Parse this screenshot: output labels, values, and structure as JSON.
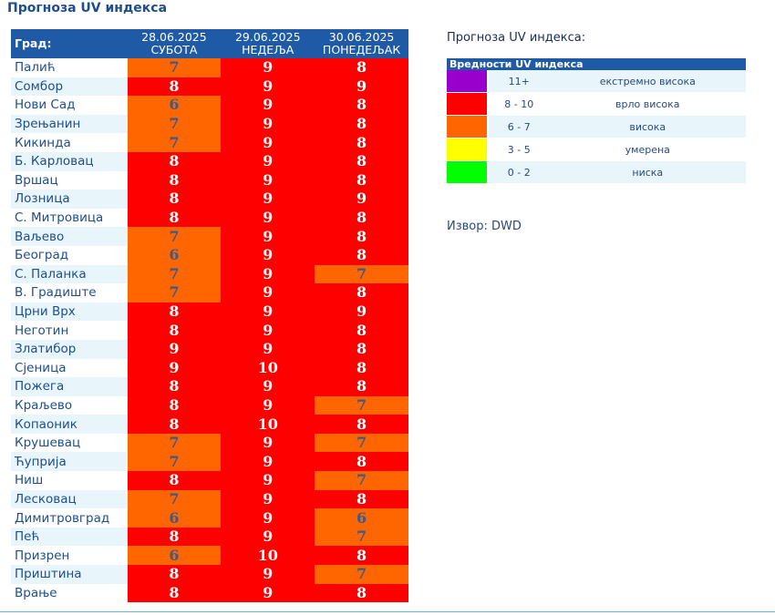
{
  "title": "Прогноза UV индекса",
  "table": {
    "city_header": "Град:",
    "days": [
      {
        "date": "28.06.2025",
        "weekday": "СУБОТА"
      },
      {
        "date": "29.06.2025",
        "weekday": "НЕДЕЉА"
      },
      {
        "date": "30.06.2025",
        "weekday": "ПОНЕДЕЉАК"
      }
    ],
    "rows": [
      {
        "city": "Палић",
        "values": [
          7,
          9,
          8
        ]
      },
      {
        "city": "Сомбор",
        "values": [
          8,
          9,
          9
        ]
      },
      {
        "city": "Нови Сад",
        "values": [
          6,
          9,
          8
        ]
      },
      {
        "city": "Зрењанин",
        "values": [
          7,
          9,
          8
        ]
      },
      {
        "city": "Кикинда",
        "values": [
          7,
          9,
          8
        ]
      },
      {
        "city": "Б. Карловац",
        "values": [
          8,
          9,
          8
        ]
      },
      {
        "city": "Вршац",
        "values": [
          8,
          9,
          8
        ]
      },
      {
        "city": "Лозница",
        "values": [
          8,
          9,
          9
        ]
      },
      {
        "city": "С. Митровица",
        "values": [
          8,
          9,
          8
        ]
      },
      {
        "city": "Ваљево",
        "values": [
          7,
          9,
          8
        ]
      },
      {
        "city": "Београд",
        "values": [
          6,
          9,
          8
        ]
      },
      {
        "city": "С. Паланка",
        "values": [
          7,
          9,
          7
        ]
      },
      {
        "city": "В. Градиште",
        "values": [
          7,
          9,
          8
        ]
      },
      {
        "city": "Црни Врх",
        "values": [
          8,
          9,
          9
        ]
      },
      {
        "city": "Неготин",
        "values": [
          8,
          9,
          8
        ]
      },
      {
        "city": "Златибор",
        "values": [
          9,
          9,
          8
        ]
      },
      {
        "city": "Сјеница",
        "values": [
          9,
          10,
          8
        ]
      },
      {
        "city": "Пожега",
        "values": [
          8,
          9,
          8
        ]
      },
      {
        "city": "Краљево",
        "values": [
          8,
          9,
          7
        ]
      },
      {
        "city": "Копаоник",
        "values": [
          8,
          10,
          8
        ]
      },
      {
        "city": "Крушевац",
        "values": [
          7,
          9,
          7
        ]
      },
      {
        "city": "Ћуприја",
        "values": [
          7,
          9,
          8
        ]
      },
      {
        "city": "Ниш",
        "values": [
          8,
          9,
          7
        ]
      },
      {
        "city": "Лесковац",
        "values": [
          7,
          9,
          8
        ]
      },
      {
        "city": "Димитровград",
        "values": [
          6,
          9,
          6
        ]
      },
      {
        "city": "Пећ",
        "values": [
          8,
          9,
          7
        ]
      },
      {
        "city": "Призрен",
        "values": [
          6,
          10,
          8
        ]
      },
      {
        "city": "Приштина",
        "values": [
          8,
          9,
          7
        ]
      },
      {
        "city": "Врање",
        "values": [
          8,
          9,
          8
        ]
      }
    ]
  },
  "legend": {
    "title": "Прогноза UV индекса:",
    "header": "Вредности UV индекса",
    "items": [
      {
        "range": "11+",
        "label": "екстремно висока",
        "color": "#9900cc"
      },
      {
        "range": "8 - 10",
        "label": "врло висока",
        "color": "#ff0000"
      },
      {
        "range": "6 - 7",
        "label": "висока",
        "color": "#ff6600"
      },
      {
        "range": "3 - 5",
        "label": "умерена",
        "color": "#ffff00"
      },
      {
        "range": "0 - 2",
        "label": "ниска",
        "color": "#00ff00"
      }
    ]
  },
  "source": "Извор: DWD"
}
